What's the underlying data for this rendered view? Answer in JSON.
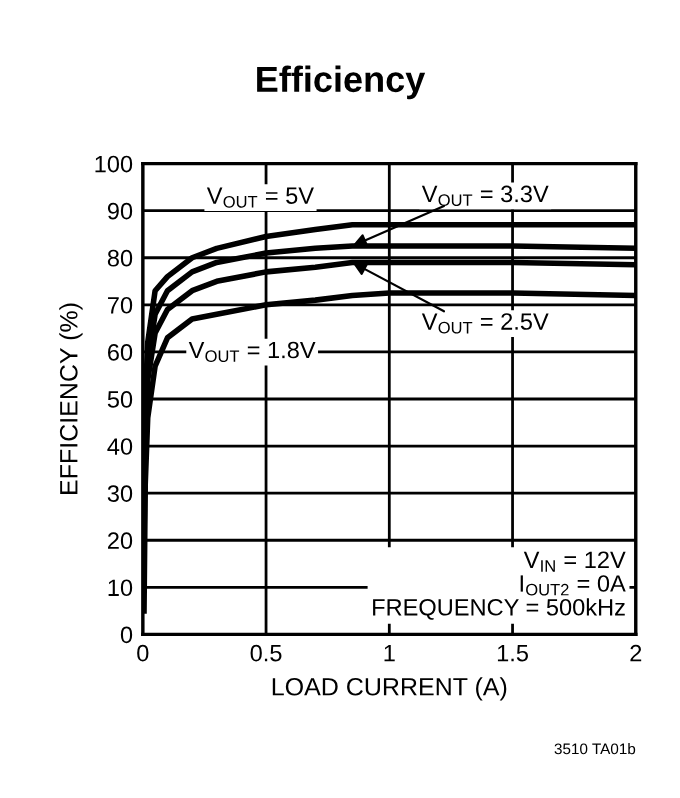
{
  "chart_data": {
    "type": "line",
    "title": "Efficiency",
    "xlabel": "LOAD CURRENT (A)",
    "ylabel": "EFFICIENCY (%)",
    "x": [
      0.005,
      0.01,
      0.02,
      0.05,
      0.1,
      0.2,
      0.3,
      0.5,
      0.7,
      0.85,
      1.0,
      1.5,
      2.0
    ],
    "series": [
      {
        "color": "#000000",
        "values": [
          30,
          50,
          62,
          73,
          76,
          80,
          82,
          84.5,
          86,
          87,
          87,
          87,
          87
        ]
      },
      {
        "color": "#000000",
        "values": [
          25,
          45,
          58,
          68,
          73,
          77,
          79,
          81,
          82,
          82.5,
          82.5,
          82.5,
          82
        ]
      },
      {
        "color": "#000000",
        "values": [
          20,
          40,
          54,
          64,
          69,
          73,
          75,
          77,
          78,
          79,
          79,
          79,
          78.5
        ]
      },
      {
        "color": "#000000",
        "values": [
          5,
          32,
          46,
          57,
          63,
          67,
          68,
          70,
          71,
          72,
          72.5,
          72.5,
          72
        ]
      }
    ],
    "xlim": [
      0,
      2
    ],
    "ylim": [
      0,
      100
    ],
    "xticks": [
      0,
      0.5,
      1,
      1.5,
      2
    ],
    "yticks": [
      0,
      10,
      20,
      30,
      40,
      50,
      60,
      70,
      80,
      90,
      100
    ],
    "grid": true,
    "line_style": "solid",
    "marker": "none",
    "annotations": [
      "V$_{OUT}$ = 5V",
      {
        "text": "V$_{OUT}$ = 3.3V",
        "x": 0.85,
        "y": 82.5
      },
      {
        "text": "V$_{OUT}$ = 2.5V",
        "x": 0.85,
        "y": 79
      },
      "V$_{OUT}$ = 1.8V",
      "V$_{IN}$ = 12V\nI$_{OUT2}$ = 0A\nFREQUENCY = 500kHz",
      "3510 TA01b"
    ]
  }
}
